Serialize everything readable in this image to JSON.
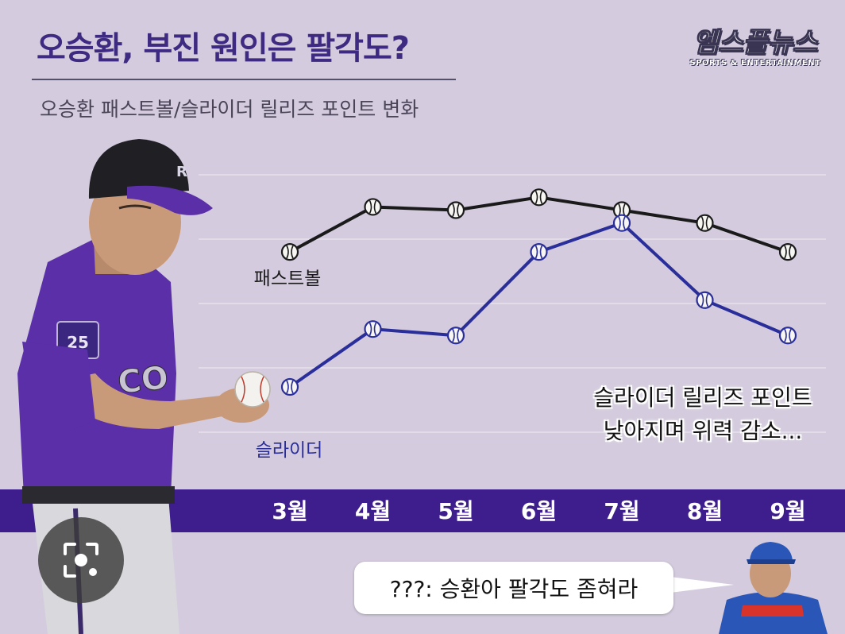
{
  "header": {
    "title": "오승환, 부진 원인은 팔각도?",
    "subtitle": "오승환 패스트볼/슬라이더 릴리즈 포인트 변화"
  },
  "logo": {
    "main": "엠스플뉴스",
    "sub": "SPORTS & ENTERTAINMENT"
  },
  "annotation": {
    "line1": "슬라이더 릴리즈 포인트",
    "line2": "낮아지며 위력 감소..."
  },
  "speech_bubble": {
    "text": "???: 승환아 팔각도 좀혀라"
  },
  "colors": {
    "background": "#d4ccde",
    "title": "#3f2a82",
    "month_band": "#3d1e8c",
    "fastball": "#1a1a1a",
    "slider": "#2a2e9a"
  },
  "icons": {
    "lens": "camera-lens-icon",
    "markers": "baseball-icon"
  },
  "chart_data": {
    "type": "line",
    "categories": [
      "3월",
      "4월",
      "5월",
      "6월",
      "7월",
      "8월",
      "9월"
    ],
    "series": [
      {
        "name": "패스트볼",
        "values": [
          5.4,
          6.1,
          6.05,
          6.25,
          6.05,
          5.85,
          5.4
        ]
      },
      {
        "name": "슬라이더",
        "values": [
          3.3,
          4.2,
          4.1,
          5.4,
          5.85,
          4.65,
          4.1
        ]
      }
    ],
    "ylim": [
      2.2,
      6.6
    ],
    "grid": true,
    "legend": "inline labels at first point"
  }
}
